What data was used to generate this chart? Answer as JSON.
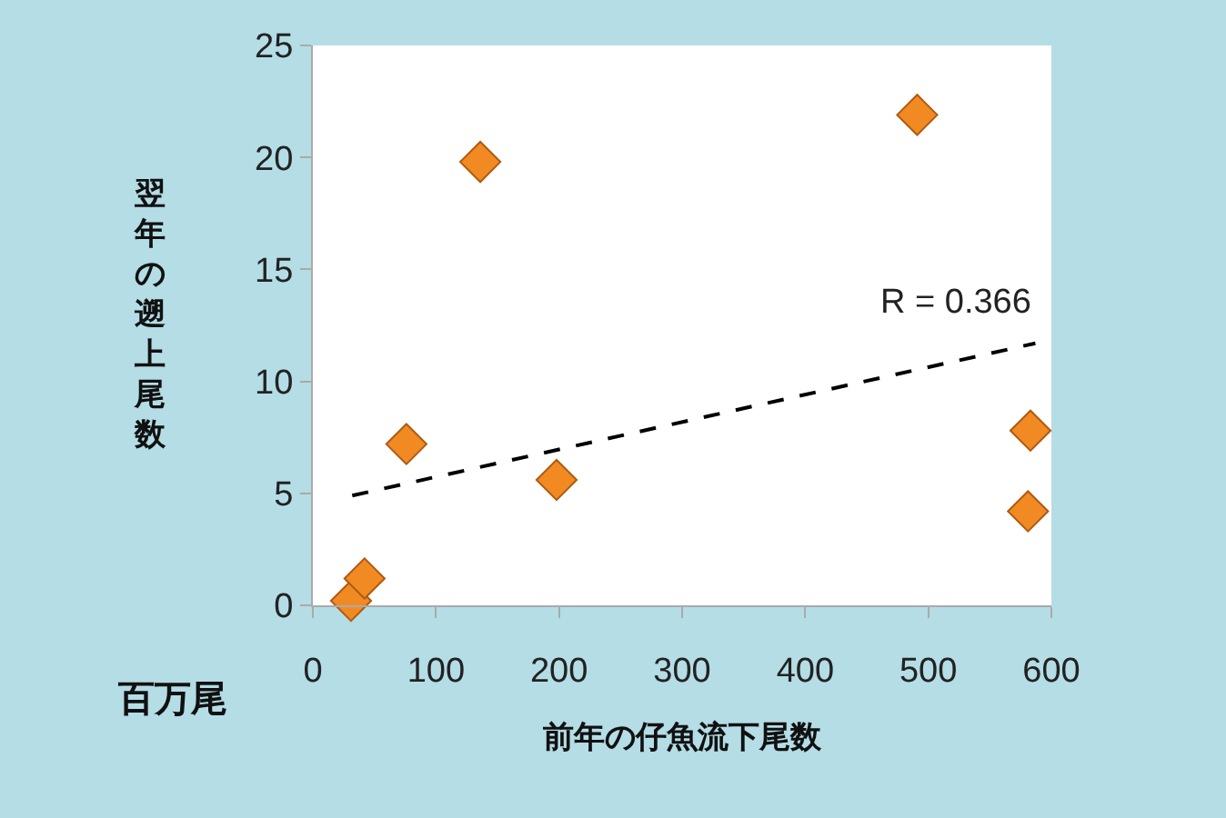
{
  "chart_data": {
    "type": "scatter",
    "xlabel": "前年の仔魚流下尾数",
    "ylabel": "翌年の遡上尾数",
    "annotations": [
      "百万尾",
      {
        "text": "R = 0.366",
        "x": 587,
        "y": 11.7
      }
    ],
    "marker": "diamond",
    "grid": false,
    "xlim": [
      0,
      600
    ],
    "xticks": [
      0,
      100,
      200,
      300,
      400,
      500,
      600
    ],
    "ylim": [
      0,
      25
    ],
    "yticks": [
      0,
      5,
      10,
      15,
      20,
      25
    ],
    "series": [
      {
        "color": "#f28a24",
        "x": [
          31,
          42,
          76,
          136,
          198,
          491,
          583,
          581
        ],
        "values": [
          0.2,
          1.2,
          7.2,
          19.8,
          5.6,
          21.9,
          7.8,
          4.2
        ]
      },
      {
        "type": "line",
        "color": "#000000",
        "line_style": "dashed",
        "marker": "none",
        "x": [
          32,
          587
        ],
        "values": [
          4.9,
          11.7
        ]
      }
    ]
  }
}
